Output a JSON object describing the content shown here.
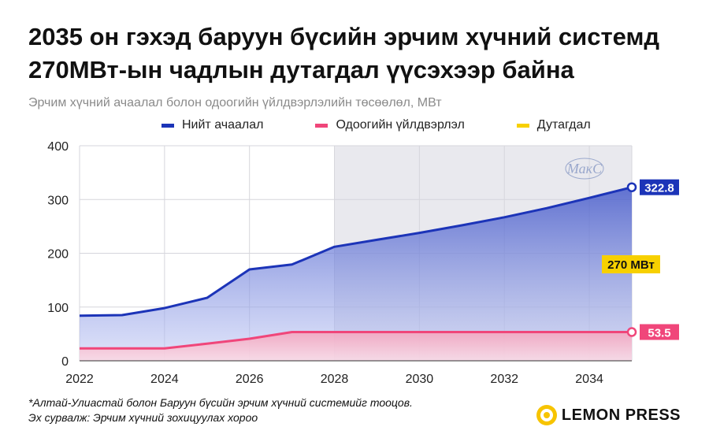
{
  "title": "2035 он гэхэд баруун бүсийн эрчим хүчний системд 270МВт-ын чадлын дутагдал үүсэхээр байна",
  "subtitle": "Эрчим хүчний ачаалал болон одоогийн үйлдвэрлэлийн төсөөлөл, МВт",
  "watermark": "МакС",
  "footer": {
    "note": "*Алтай-Улиастай болон Баруун бүсийн эрчим хүчний системийг тооцов.",
    "source": "Эх сурвалж: Эрчим хүчний зохицуулах хороо"
  },
  "brand": "LEMON PRESS",
  "colors": {
    "load": "#1c34b8",
    "production": "#f0467a",
    "deficit": "#f7d000",
    "projection_shade": "#e9e9ee"
  },
  "chart_data": {
    "type": "area",
    "title": "",
    "xlabel": "",
    "ylabel": "",
    "x": [
      2022,
      2023,
      2024,
      2025,
      2026,
      2027,
      2028,
      2029,
      2030,
      2031,
      2032,
      2033,
      2034,
      2035
    ],
    "xlim": [
      2022,
      2035
    ],
    "ylim": [
      0,
      400
    ],
    "x_ticks": [
      2022,
      2024,
      2026,
      2028,
      2030,
      2032,
      2034
    ],
    "y_ticks": [
      0,
      100,
      200,
      300,
      400
    ],
    "grid": true,
    "legend_position": "top",
    "projection_start": 2028,
    "series": [
      {
        "name": "Нийт ачаалал",
        "color": "#1c34b8",
        "values": [
          84,
          85,
          98,
          117,
          170,
          179,
          212,
          225,
          238,
          252,
          267,
          284,
          303,
          322.8
        ],
        "end_label": "322.8"
      },
      {
        "name": "Одоогийн үйлдвэрлэл",
        "color": "#f0467a",
        "values": [
          23,
          23,
          23,
          32,
          41,
          53.5,
          53.5,
          53.5,
          53.5,
          53.5,
          53.5,
          53.5,
          53.5,
          53.5
        ],
        "end_label": "53.5"
      },
      {
        "name": "Дутагдал",
        "color": "#f7d000",
        "annotation": "270 МВт"
      }
    ]
  }
}
